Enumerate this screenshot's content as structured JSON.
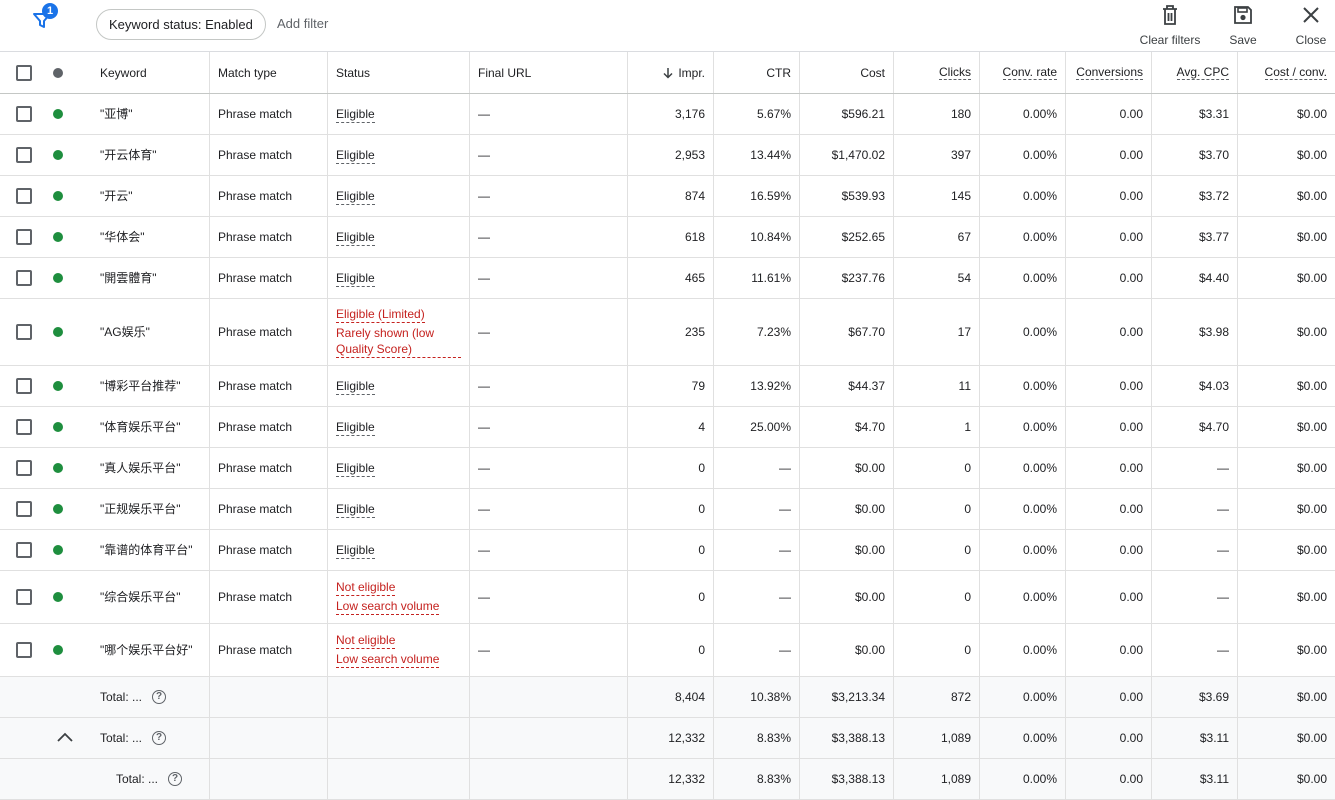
{
  "toolbar": {
    "filter_count": "1",
    "chip_label": "Keyword status: Enabled",
    "add_filter": "Add filter",
    "clear_filters": "Clear filters",
    "save": "Save",
    "close": "Close"
  },
  "colors": {
    "enabled_dot": "#1e8e3e",
    "header_dot": "#5f6368",
    "accent": "#1a73e8",
    "warning": "#c5221f"
  },
  "columns": {
    "keyword": "Keyword",
    "match_type": "Match type",
    "status": "Status",
    "final_url": "Final URL",
    "impr": "Impr.",
    "ctr": "CTR",
    "cost": "Cost",
    "clicks": "Clicks",
    "conv_rate": "Conv. rate",
    "conversions": "Conversions",
    "avg_cpc": "Avg. CPC",
    "cost_conv": "Cost / conv."
  },
  "rows": [
    {
      "keyword": "\"亚博\"",
      "match": "Phrase match",
      "status": [
        "Eligible"
      ],
      "url": "—",
      "impr": "3,176",
      "ctr": "5.67%",
      "cost": "$596.21",
      "clicks": "180",
      "conv_rate": "0.00%",
      "conversions": "0.00",
      "avg_cpc": "$3.31",
      "cost_conv": "$0.00"
    },
    {
      "keyword": "\"开云体育\"",
      "match": "Phrase match",
      "status": [
        "Eligible"
      ],
      "url": "—",
      "impr": "2,953",
      "ctr": "13.44%",
      "cost": "$1,470.02",
      "clicks": "397",
      "conv_rate": "0.00%",
      "conversions": "0.00",
      "avg_cpc": "$3.70",
      "cost_conv": "$0.00"
    },
    {
      "keyword": "\"开云\"",
      "match": "Phrase match",
      "status": [
        "Eligible"
      ],
      "url": "—",
      "impr": "874",
      "ctr": "16.59%",
      "cost": "$539.93",
      "clicks": "145",
      "conv_rate": "0.00%",
      "conversions": "0.00",
      "avg_cpc": "$3.72",
      "cost_conv": "$0.00"
    },
    {
      "keyword": "\"华体会\"",
      "match": "Phrase match",
      "status": [
        "Eligible"
      ],
      "url": "—",
      "impr": "618",
      "ctr": "10.84%",
      "cost": "$252.65",
      "clicks": "67",
      "conv_rate": "0.00%",
      "conversions": "0.00",
      "avg_cpc": "$3.77",
      "cost_conv": "$0.00"
    },
    {
      "keyword": "\"開雲體育\"",
      "match": "Phrase match",
      "status": [
        "Eligible"
      ],
      "url": "—",
      "impr": "465",
      "ctr": "11.61%",
      "cost": "$237.76",
      "clicks": "54",
      "conv_rate": "0.00%",
      "conversions": "0.00",
      "avg_cpc": "$4.40",
      "cost_conv": "$0.00"
    },
    {
      "keyword": "\"AG娱乐\"",
      "match": "Phrase match",
      "status": [
        "Eligible (Limited)",
        "Rarely shown (low Quality Score)"
      ],
      "status_red": true,
      "url": "—",
      "impr": "235",
      "ctr": "7.23%",
      "cost": "$67.70",
      "clicks": "17",
      "conv_rate": "0.00%",
      "conversions": "0.00",
      "avg_cpc": "$3.98",
      "cost_conv": "$0.00"
    },
    {
      "keyword": "\"博彩平台推荐\"",
      "match": "Phrase match",
      "status": [
        "Eligible"
      ],
      "url": "—",
      "impr": "79",
      "ctr": "13.92%",
      "cost": "$44.37",
      "clicks": "11",
      "conv_rate": "0.00%",
      "conversions": "0.00",
      "avg_cpc": "$4.03",
      "cost_conv": "$0.00"
    },
    {
      "keyword": "\"体育娱乐平台\"",
      "match": "Phrase match",
      "status": [
        "Eligible"
      ],
      "url": "—",
      "impr": "4",
      "ctr": "25.00%",
      "cost": "$4.70",
      "clicks": "1",
      "conv_rate": "0.00%",
      "conversions": "0.00",
      "avg_cpc": "$4.70",
      "cost_conv": "$0.00"
    },
    {
      "keyword": "\"真人娱乐平台\"",
      "match": "Phrase match",
      "status": [
        "Eligible"
      ],
      "url": "—",
      "impr": "0",
      "ctr": "—",
      "cost": "$0.00",
      "clicks": "0",
      "conv_rate": "0.00%",
      "conversions": "0.00",
      "avg_cpc": "—",
      "cost_conv": "$0.00"
    },
    {
      "keyword": "\"正规娱乐平台\"",
      "match": "Phrase match",
      "status": [
        "Eligible"
      ],
      "url": "—",
      "impr": "0",
      "ctr": "—",
      "cost": "$0.00",
      "clicks": "0",
      "conv_rate": "0.00%",
      "conversions": "0.00",
      "avg_cpc": "—",
      "cost_conv": "$0.00"
    },
    {
      "keyword": "\"靠谱的体育平台\"",
      "match": "Phrase match",
      "status": [
        "Eligible"
      ],
      "url": "—",
      "impr": "0",
      "ctr": "—",
      "cost": "$0.00",
      "clicks": "0",
      "conv_rate": "0.00%",
      "conversions": "0.00",
      "avg_cpc": "—",
      "cost_conv": "$0.00"
    },
    {
      "keyword": "\"综合娱乐平台\"",
      "match": "Phrase match",
      "status": [
        "Not eligible",
        "Low search volume"
      ],
      "status_red": true,
      "url": "—",
      "impr": "0",
      "ctr": "—",
      "cost": "$0.00",
      "clicks": "0",
      "conv_rate": "0.00%",
      "conversions": "0.00",
      "avg_cpc": "—",
      "cost_conv": "$0.00"
    },
    {
      "keyword": "\"哪个娱乐平台好\"",
      "match": "Phrase match",
      "status": [
        "Not eligible",
        "Low search volume"
      ],
      "status_red": true,
      "url": "—",
      "impr": "0",
      "ctr": "—",
      "cost": "$0.00",
      "clicks": "0",
      "conv_rate": "0.00%",
      "conversions": "0.00",
      "avg_cpc": "—",
      "cost_conv": "$0.00"
    }
  ],
  "totals": [
    {
      "label": "Total: ...",
      "impr": "8,404",
      "ctr": "10.38%",
      "cost": "$3,213.34",
      "clicks": "872",
      "conv_rate": "0.00%",
      "conversions": "0.00",
      "avg_cpc": "$3.69",
      "cost_conv": "$0.00"
    },
    {
      "label": "Total: ...",
      "impr": "12,332",
      "ctr": "8.83%",
      "cost": "$3,388.13",
      "clicks": "1,089",
      "conv_rate": "0.00%",
      "conversions": "0.00",
      "avg_cpc": "$3.11",
      "cost_conv": "$0.00"
    },
    {
      "label": "Total: ...",
      "impr": "12,332",
      "ctr": "8.83%",
      "cost": "$3,388.13",
      "clicks": "1,089",
      "conv_rate": "0.00%",
      "conversions": "0.00",
      "avg_cpc": "$3.11",
      "cost_conv": "$0.00"
    }
  ]
}
